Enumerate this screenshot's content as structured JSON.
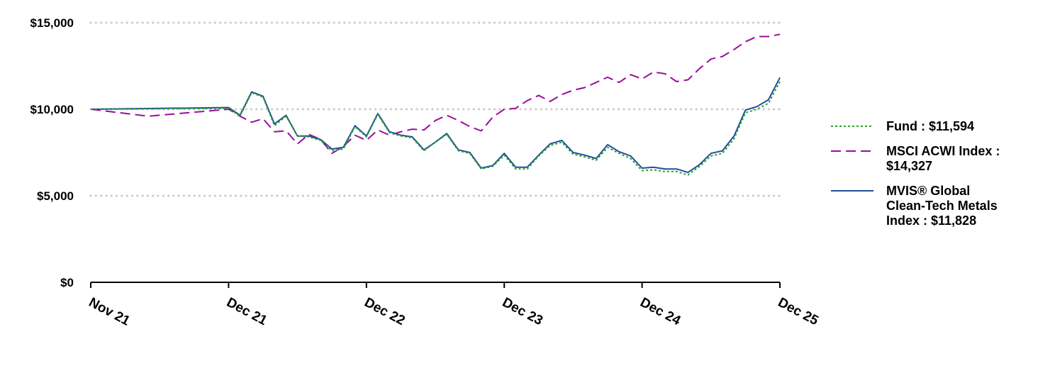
{
  "chart_data": {
    "type": "line",
    "title": "",
    "xlabel": "",
    "ylabel": "",
    "ylim": [
      0,
      15000
    ],
    "y_ticks": [
      0,
      5000,
      10000,
      15000
    ],
    "y_tick_labels": [
      "$0",
      "$5,000",
      "$10,000",
      "$15,000"
    ],
    "x_ticks": [
      0,
      1,
      2,
      3,
      4,
      5
    ],
    "x_tick_labels": [
      "Nov 21",
      "Dec 21",
      "Dec 22",
      "Dec 23",
      "Dec 24",
      "Dec 25"
    ],
    "grid": "horizontal-dotted",
    "legend_position": "right",
    "series": [
      {
        "name": "Fund : $11,594",
        "color": "#2ca02c",
        "dash": "dotted",
        "x": [
          0,
          1,
          1.083,
          1.167,
          1.25,
          1.333,
          1.417,
          1.5,
          1.583,
          1.667,
          1.75,
          1.833,
          1.917,
          2,
          2.083,
          2.167,
          2.25,
          2.333,
          2.417,
          2.5,
          2.583,
          2.667,
          2.75,
          2.833,
          2.917,
          3,
          3.083,
          3.167,
          3.25,
          3.333,
          3.417,
          3.5,
          3.583,
          3.667,
          3.75,
          3.833,
          3.917,
          4,
          4.083,
          4.167,
          4.25,
          4.333,
          4.417,
          4.5,
          4.583,
          4.667,
          4.75,
          4.833,
          4.917,
          5
        ],
        "values": [
          10000,
          10050,
          9600,
          10950,
          10700,
          9050,
          9600,
          8450,
          8400,
          8200,
          7600,
          7700,
          9000,
          8400,
          9700,
          8650,
          8450,
          8350,
          7600,
          8100,
          8550,
          7600,
          7450,
          6550,
          6700,
          7350,
          6550,
          6550,
          7300,
          7900,
          8100,
          7400,
          7250,
          7050,
          7800,
          7450,
          7150,
          6450,
          6500,
          6400,
          6400,
          6200,
          6700,
          7300,
          7450,
          8300,
          9800,
          10000,
          10350,
          11594
        ]
      },
      {
        "name": "MSCI ACWI Index : $14,327",
        "color": "#9b0d9e",
        "dash": "dashed",
        "x": [
          0,
          0.417,
          1,
          1.083,
          1.167,
          1.25,
          1.333,
          1.417,
          1.5,
          1.583,
          1.667,
          1.75,
          1.833,
          1.917,
          2,
          2.083,
          2.167,
          2.25,
          2.333,
          2.417,
          2.5,
          2.583,
          2.667,
          2.75,
          2.833,
          2.917,
          3,
          3.083,
          3.167,
          3.25,
          3.333,
          3.417,
          3.5,
          3.583,
          3.667,
          3.75,
          3.833,
          3.917,
          4,
          4.083,
          4.167,
          4.25,
          4.333,
          4.417,
          4.5,
          4.583,
          4.667,
          4.75,
          4.833,
          4.917,
          5
        ],
        "values": [
          10000,
          9600,
          10000,
          9600,
          9250,
          9450,
          8700,
          8750,
          8000,
          8550,
          8250,
          7450,
          7850,
          8500,
          8200,
          8800,
          8500,
          8700,
          8850,
          8800,
          9350,
          9650,
          9350,
          9000,
          8750,
          9550,
          10000,
          10050,
          10500,
          10800,
          10450,
          10850,
          11100,
          11250,
          11550,
          11850,
          11550,
          12000,
          11750,
          12150,
          12050,
          11600,
          11700,
          12350,
          12900,
          13050,
          13450,
          13900,
          14200,
          14200,
          14327
        ]
      },
      {
        "name": "MVIS® Global Clean-Tech Metals Index : $11,828",
        "color": "#1f4e9c",
        "dash": "solid",
        "x": [
          0,
          1,
          1.083,
          1.167,
          1.25,
          1.333,
          1.417,
          1.5,
          1.583,
          1.667,
          1.75,
          1.833,
          1.917,
          2,
          2.083,
          2.167,
          2.25,
          2.333,
          2.417,
          2.5,
          2.583,
          2.667,
          2.75,
          2.833,
          2.917,
          3,
          3.083,
          3.167,
          3.25,
          3.333,
          3.417,
          3.5,
          3.583,
          3.667,
          3.75,
          3.833,
          3.917,
          4,
          4.083,
          4.167,
          4.25,
          4.333,
          4.417,
          4.5,
          4.583,
          4.667,
          4.75,
          4.833,
          4.917,
          5
        ],
        "values": [
          10000,
          10100,
          9650,
          11000,
          10750,
          9150,
          9650,
          8450,
          8450,
          8250,
          7700,
          7800,
          9050,
          8450,
          9750,
          8700,
          8500,
          8400,
          7650,
          8100,
          8600,
          7650,
          7500,
          6600,
          6750,
          7450,
          6650,
          6650,
          7350,
          8000,
          8200,
          7500,
          7350,
          7150,
          7950,
          7550,
          7300,
          6600,
          6650,
          6550,
          6550,
          6350,
          6800,
          7450,
          7600,
          8450,
          9950,
          10150,
          10550,
          11828
        ]
      }
    ]
  },
  "legend": {
    "items": [
      {
        "lines": [
          "Fund : $11,594"
        ],
        "color": "#2ca02c",
        "dash": "dotted"
      },
      {
        "lines": [
          "MSCI ACWI Index :",
          "$14,327"
        ],
        "color": "#9b0d9e",
        "dash": "dashed"
      },
      {
        "lines": [
          "MVIS® Global",
          "Clean-Tech Metals",
          "Index : $11,828"
        ],
        "color": "#1f4e9c",
        "dash": "solid"
      }
    ]
  }
}
